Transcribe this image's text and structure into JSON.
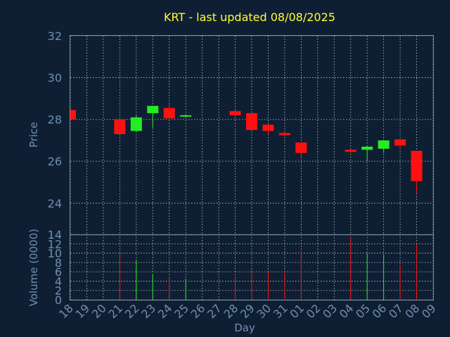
{
  "chart_data": {
    "type": "candlestick",
    "title": "KRT - last updated 08/08/2025",
    "xlabel": "Day",
    "price_panel": {
      "ylabel": "Price",
      "ylim": [
        22.5,
        32
      ],
      "yticks": [
        "24",
        "26",
        "28",
        "30",
        "32"
      ]
    },
    "volume_panel": {
      "ylabel": "Volume (0000)",
      "ylim": [
        0,
        14
      ],
      "yticks": [
        "0",
        "2",
        "4",
        "6",
        "8",
        "10",
        "12",
        "14"
      ]
    },
    "categories": [
      "18",
      "19",
      "20",
      "21",
      "22",
      "23",
      "24",
      "25",
      "26",
      "27",
      "28",
      "29",
      "30",
      "31",
      "01",
      "02",
      "03",
      "04",
      "05",
      "06",
      "07",
      "08",
      "09"
    ],
    "candles": [
      {
        "day": "18",
        "open": 28.45,
        "high": 28.45,
        "low": 27.95,
        "close": 28.0,
        "volume": 0
      },
      {
        "day": "21",
        "open": 28.0,
        "high": 28.0,
        "low": 27.3,
        "close": 27.3,
        "volume": 10
      },
      {
        "day": "22",
        "open": 27.45,
        "high": 28.2,
        "low": 27.4,
        "close": 28.1,
        "volume": 8.5
      },
      {
        "day": "23",
        "open": 28.3,
        "high": 28.65,
        "low": 27.6,
        "close": 28.65,
        "volume": 5.5
      },
      {
        "day": "24",
        "open": 28.55,
        "high": 28.7,
        "low": 28.05,
        "close": 28.05,
        "volume": 5
      },
      {
        "day": "25",
        "open": 28.15,
        "high": 28.25,
        "low": 28.1,
        "close": 28.2,
        "volume": 4.5
      },
      {
        "day": "28",
        "open": 28.4,
        "high": 28.45,
        "low": 28.0,
        "close": 28.2,
        "volume": 5
      },
      {
        "day": "29",
        "open": 28.3,
        "high": 28.3,
        "low": 27.4,
        "close": 27.5,
        "volume": 6.5
      },
      {
        "day": "30",
        "open": 27.75,
        "high": 27.8,
        "low": 27.3,
        "close": 27.45,
        "volume": 6
      },
      {
        "day": "31",
        "open": 27.35,
        "high": 27.4,
        "low": 27.2,
        "close": 27.25,
        "volume": 6
      },
      {
        "day": "01",
        "open": 26.9,
        "high": 26.9,
        "low": 26.25,
        "close": 26.4,
        "volume": 10.5
      },
      {
        "day": "04",
        "open": 26.55,
        "high": 26.6,
        "low": 26.4,
        "close": 26.45,
        "volume": 13.5
      },
      {
        "day": "05",
        "open": 26.55,
        "high": 26.75,
        "low": 26.0,
        "close": 26.7,
        "volume": 10
      },
      {
        "day": "06",
        "open": 26.6,
        "high": 27.0,
        "low": 26.4,
        "close": 27.0,
        "volume": 9.5
      },
      {
        "day": "07",
        "open": 27.05,
        "high": 27.05,
        "low": 26.6,
        "close": 26.75,
        "volume": 7.5
      },
      {
        "day": "08",
        "open": 26.5,
        "high": 26.5,
        "low": 24.5,
        "close": 25.05,
        "volume": 12
      }
    ],
    "colors": {
      "background": "#0f1f33",
      "up": "#22ee22",
      "down": "#ff1111",
      "grid": "#ffffff",
      "axis_text": "#6f8fb2",
      "title": "#ffff33"
    }
  }
}
